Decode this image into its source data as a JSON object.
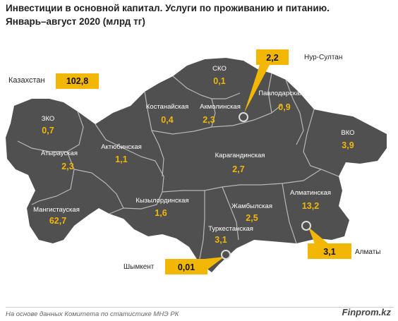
{
  "title": {
    "line1": "Инвестиции в основной капитал. Услуги по проживанию и питанию.",
    "line2": "Январь–август 2020 (млрд тг)"
  },
  "total": {
    "label": "Казахстан",
    "value": "102,8"
  },
  "regions": {
    "sko": {
      "name": "СКО",
      "value": "0,1"
    },
    "kostanay": {
      "name": "Костанайская",
      "value": "0,4"
    },
    "akmola": {
      "name": "Акмолинская",
      "value": "2,3"
    },
    "pavlodar": {
      "name": "Павлодарская",
      "value": "0,9"
    },
    "zko": {
      "name": "ЗКО",
      "value": "0,7"
    },
    "aktobe": {
      "name": "Актюбинская",
      "value": "1,1"
    },
    "atyrau": {
      "name": "Атырауская",
      "value": "2,3"
    },
    "karaganda": {
      "name": "Карагандинская",
      "value": "2,7"
    },
    "vko": {
      "name": "ВКО",
      "value": "3,9"
    },
    "mangistau": {
      "name": "Мангистауская",
      "value": "62,7"
    },
    "kyzylorda": {
      "name": "Кызылординская",
      "value": "1,6"
    },
    "zhambyl": {
      "name": "Жамбылская",
      "value": "2,5"
    },
    "almaty_obl": {
      "name": "Алматинская",
      "value": "13,2"
    },
    "turkestan": {
      "name": "Туркестанская",
      "value": "3,1"
    }
  },
  "cities": {
    "nursultan": {
      "name": "Нур-Султан",
      "value": "2,2"
    },
    "almaty": {
      "name": "Алматы",
      "value": "3,1"
    },
    "shymkent": {
      "name": "Шымкент",
      "value": "0,01"
    }
  },
  "colors": {
    "region_fill": "#505050",
    "border": "#b8b8b8",
    "accent": "#f2b705"
  },
  "footer": {
    "source": "На основе данных Комитета по статистике МНЭ РК",
    "brand": "Finprom.kz"
  }
}
